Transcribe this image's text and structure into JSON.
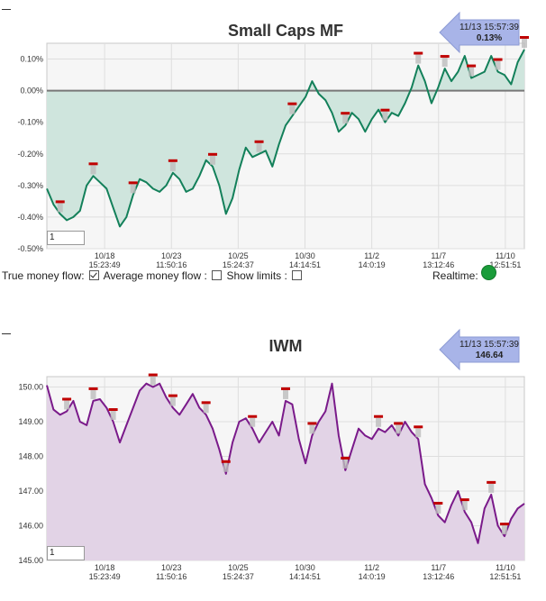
{
  "panels": [
    {
      "title": "Small Caps MF",
      "arrow": {
        "time": "11/13 15:57:39",
        "value": "0.13%"
      },
      "period": "1"
    },
    {
      "title": "IWM",
      "arrow": {
        "time": "11/13 15:57:39",
        "value": "146.64"
      },
      "period": "1"
    }
  ],
  "controls": {
    "true_mf_label": "True money flow:",
    "true_mf_checked": true,
    "avg_mf_label": "Average money flow :",
    "avg_mf_checked": false,
    "limits_label": "Show limits :",
    "limits_checked": false,
    "realtime_label": "Realtime:"
  },
  "colors": {
    "mf_line": "#13805a",
    "mf_fill": "#cfe5dd",
    "iwm_line": "#7a1a8a",
    "iwm_fill": "#e2d3e6",
    "marker": "#c00000",
    "arrow": "#a8b4e8",
    "realtime": "#1a9c3a"
  },
  "chart_data": [
    {
      "type": "area",
      "title": "Small Caps MF",
      "y_tick_labels": [
        "0.10%",
        "0.00%",
        "-0.10%",
        "-0.20%",
        "-0.30%",
        "-0.40%",
        "-0.50%"
      ],
      "ylim": [
        -0.5,
        0.15
      ],
      "x_tick_labels": [
        {
          "date": "10/18",
          "time": "15:23:49"
        },
        {
          "date": "10/23",
          "time": "11:50:16"
        },
        {
          "date": "10/25",
          "time": "15:24:37"
        },
        {
          "date": "10/30",
          "time": "14:14:51"
        },
        {
          "date": "11/2",
          "time": "14:0:19"
        },
        {
          "date": "11/7",
          "time": "13:12:46"
        },
        {
          "date": "11/10",
          "time": "12:51:51"
        }
      ],
      "grid": true,
      "baseline": 0,
      "values": [
        -0.31,
        -0.36,
        -0.39,
        -0.41,
        -0.4,
        -0.38,
        -0.3,
        -0.27,
        -0.29,
        -0.31,
        -0.37,
        -0.43,
        -0.4,
        -0.33,
        -0.28,
        -0.29,
        -0.31,
        -0.32,
        -0.3,
        -0.26,
        -0.28,
        -0.32,
        -0.31,
        -0.27,
        -0.22,
        -0.24,
        -0.3,
        -0.39,
        -0.34,
        -0.25,
        -0.18,
        -0.21,
        -0.2,
        -0.19,
        -0.24,
        -0.17,
        -0.11,
        -0.08,
        -0.05,
        -0.02,
        0.03,
        -0.01,
        -0.03,
        -0.07,
        -0.13,
        -0.11,
        -0.07,
        -0.09,
        -0.13,
        -0.09,
        -0.06,
        -0.1,
        -0.07,
        -0.08,
        -0.04,
        0.01,
        0.08,
        0.03,
        -0.04,
        0.01,
        0.07,
        0.03,
        0.06,
        0.11,
        0.04,
        0.05,
        0.06,
        0.11,
        0.06,
        0.05,
        0.02,
        0.09,
        0.13
      ],
      "markers": [
        2,
        7,
        13,
        19,
        25,
        32,
        37,
        45,
        51,
        56,
        60,
        64,
        68,
        72
      ]
    },
    {
      "type": "area",
      "title": "IWM",
      "y_tick_labels": [
        "150.00",
        "149.00",
        "148.00",
        "147.00",
        "146.00",
        "145.00"
      ],
      "ylim": [
        145.0,
        150.3
      ],
      "x_tick_labels": [
        {
          "date": "10/18",
          "time": "15:23:49"
        },
        {
          "date": "10/23",
          "time": "11:50:16"
        },
        {
          "date": "10/25",
          "time": "15:24:37"
        },
        {
          "date": "10/30",
          "time": "14:14:51"
        },
        {
          "date": "11/2",
          "time": "14:0:19"
        },
        {
          "date": "11/7",
          "time": "13:12:46"
        },
        {
          "date": "11/10",
          "time": "12:51:51"
        }
      ],
      "grid": true,
      "baseline": 145.0,
      "values": [
        150.05,
        149.35,
        149.2,
        149.3,
        149.6,
        149.0,
        148.9,
        149.6,
        149.65,
        149.4,
        149.0,
        148.4,
        148.9,
        149.4,
        149.9,
        150.1,
        150.0,
        150.1,
        149.7,
        149.4,
        149.2,
        149.5,
        149.8,
        149.4,
        149.2,
        148.8,
        148.2,
        147.5,
        148.4,
        149.0,
        149.1,
        148.8,
        148.4,
        148.7,
        149.0,
        148.6,
        149.6,
        149.5,
        148.5,
        147.8,
        148.6,
        149.0,
        149.3,
        150.1,
        148.6,
        147.6,
        148.2,
        148.8,
        148.6,
        148.5,
        148.8,
        148.7,
        148.9,
        148.6,
        149.0,
        148.7,
        148.5,
        147.2,
        146.8,
        146.3,
        146.1,
        146.6,
        147.0,
        146.4,
        146.1,
        145.5,
        146.5,
        146.9,
        146.0,
        145.7,
        146.2,
        146.5,
        146.64
      ],
      "markers": [
        3,
        7,
        10,
        16,
        19,
        24,
        27,
        31,
        36,
        40,
        45,
        50,
        53,
        56,
        59,
        63,
        67,
        69
      ]
    }
  ]
}
